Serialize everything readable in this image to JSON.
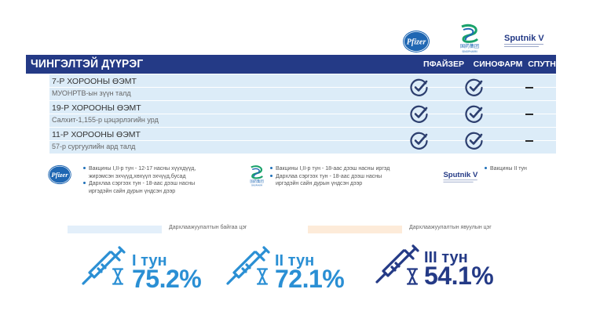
{
  "brands": {
    "pfizer_logo_text": "Pfizer",
    "sinopharm_logo_text": "国药集团",
    "sinopharm_logo_sub": "SINOPHARM",
    "sputnik_logo_text": "Sputnik V"
  },
  "table": {
    "title": "ЧИНГЭЛТЭЙ ДҮҮРЭГ",
    "columns": [
      "ПФАЙЗЕР",
      "СИНОФАРМ",
      "СПУТНИК V"
    ],
    "rows": [
      {
        "title": "7-Р ХОРООНЫ ӨЭМТ",
        "subtitle": "МУОНРТВ-ын зүүн талд",
        "pfizer": "check",
        "sinopharm": "check",
        "sputnik": "dash"
      },
      {
        "title": "19-Р ХОРООНЫ ӨЭМТ",
        "subtitle": "Салхит-1,155-р цэцэрлэгийн урд",
        "pfizer": "check",
        "sinopharm": "check",
        "sputnik": "dash"
      },
      {
        "title": "11-Р ХОРООНЫ ӨЭМТ",
        "subtitle": "57-р сургуулийн ард талд",
        "pfizer": "check",
        "sinopharm": "check",
        "sputnik": "dash"
      }
    ]
  },
  "notes": {
    "pfizer": [
      "Вакцины I,II-р тун - 12-17 насны хүүхдүүд,",
      "жирэмсэн эхчүүд,хөхүүл эхчүүд,бусад",
      "Дархлаа сэргээх тун - 18-аас дээш насны",
      "иргэдэйн сайн дурын үндсэн дээр"
    ],
    "sinopharm": [
      "Вакцины I,II-р тун - 18-аас дээш насны иргэд",
      "Дархлаа сэргээх тун - 18-аас дээш насны",
      "иргэдэйн сайн дурын үндсэн дээр"
    ],
    "sputnik": [
      "Вакцины II тун"
    ]
  },
  "legend": {
    "existing": "Дархлаажуулалтын байгаа цэг",
    "mobile": "Дархлаажуулалтын явуулын цэг",
    "existing_color": "#e3effa",
    "mobile_color": "#fdebd9"
  },
  "stats": [
    {
      "label": "I тун",
      "value": "75.2%",
      "color": "#2a8fd4",
      "level": 75.2
    },
    {
      "label": "II тун",
      "value": "72.1%",
      "color": "#2a8fd4",
      "level": 72.1
    },
    {
      "label": "III тун",
      "value": "54.1%",
      "color": "#243a86",
      "level": 54.1
    }
  ],
  "colors": {
    "header_bg": "#243a86",
    "row_bg": "#dcecf8",
    "check": "#2c3e6e",
    "accent_blue": "#2a8fd4"
  }
}
